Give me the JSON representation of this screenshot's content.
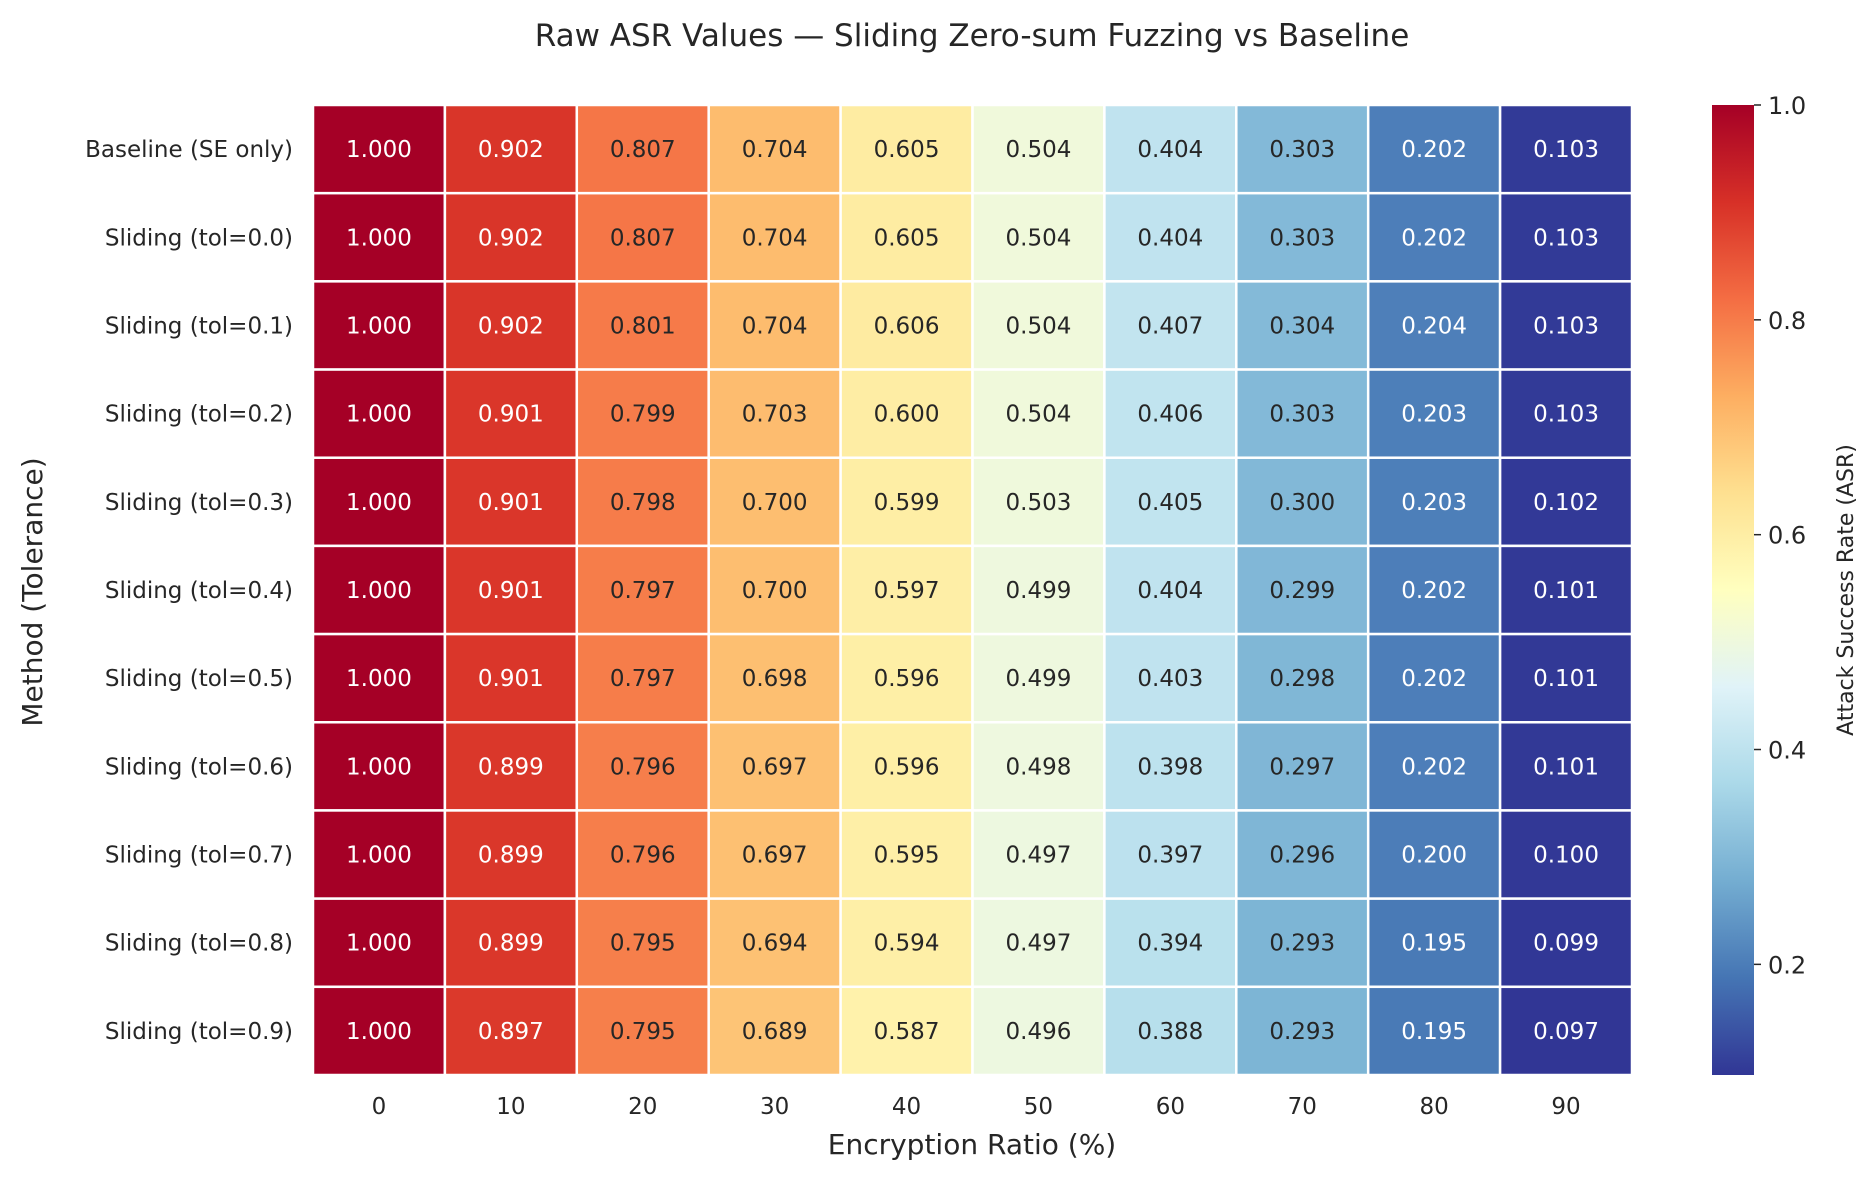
{
  "chart_data": {
    "type": "heatmap",
    "title": "Raw ASR Values — Sliding Zero-sum Fuzzing vs Baseline",
    "xlabel": "Encryption Ratio (%)",
    "ylabel": "Method (Tolerance)",
    "x_categories": [
      "0",
      "10",
      "20",
      "30",
      "40",
      "50",
      "60",
      "70",
      "80",
      "90"
    ],
    "y_categories": [
      "Baseline (SE only)",
      "Sliding (tol=0.0)",
      "Sliding (tol=0.1)",
      "Sliding (tol=0.2)",
      "Sliding (tol=0.3)",
      "Sliding (tol=0.4)",
      "Sliding (tol=0.5)",
      "Sliding (tol=0.6)",
      "Sliding (tol=0.7)",
      "Sliding (tol=0.8)",
      "Sliding (tol=0.9)"
    ],
    "values": [
      [
        1.0,
        0.902,
        0.807,
        0.704,
        0.605,
        0.504,
        0.404,
        0.303,
        0.202,
        0.103
      ],
      [
        1.0,
        0.902,
        0.807,
        0.704,
        0.605,
        0.504,
        0.404,
        0.303,
        0.202,
        0.103
      ],
      [
        1.0,
        0.902,
        0.801,
        0.704,
        0.606,
        0.504,
        0.407,
        0.304,
        0.204,
        0.103
      ],
      [
        1.0,
        0.901,
        0.799,
        0.703,
        0.6,
        0.504,
        0.406,
        0.303,
        0.203,
        0.103
      ],
      [
        1.0,
        0.901,
        0.798,
        0.7,
        0.599,
        0.503,
        0.405,
        0.3,
        0.203,
        0.102
      ],
      [
        1.0,
        0.901,
        0.797,
        0.7,
        0.597,
        0.499,
        0.404,
        0.299,
        0.202,
        0.101
      ],
      [
        1.0,
        0.901,
        0.797,
        0.698,
        0.596,
        0.499,
        0.403,
        0.298,
        0.202,
        0.101
      ],
      [
        1.0,
        0.899,
        0.796,
        0.697,
        0.596,
        0.498,
        0.398,
        0.297,
        0.202,
        0.101
      ],
      [
        1.0,
        0.899,
        0.796,
        0.697,
        0.595,
        0.497,
        0.397,
        0.296,
        0.2,
        0.1
      ],
      [
        1.0,
        0.899,
        0.795,
        0.694,
        0.594,
        0.497,
        0.394,
        0.293,
        0.195,
        0.099
      ],
      [
        1.0,
        0.897,
        0.795,
        0.689,
        0.587,
        0.496,
        0.388,
        0.293,
        0.195,
        0.097
      ]
    ],
    "value_format": "0.000",
    "colorbar": {
      "label": "Attack Success Rate (ASR)",
      "vmin": 0.097,
      "vmax": 1.0,
      "ticks": [
        0.2,
        0.4,
        0.6,
        0.8,
        1.0
      ],
      "tick_labels": [
        "0.2",
        "0.4",
        "0.6",
        "0.8",
        "1.0"
      ],
      "colormap": "RdYlBu_r",
      "stops": [
        "#313695",
        "#4575b4",
        "#74add1",
        "#abd9e9",
        "#e0f3f8",
        "#ffffbf",
        "#fee090",
        "#fdae61",
        "#f46d43",
        "#d73027",
        "#a50026"
      ]
    },
    "grid": true,
    "cell_border_color": "#ffffff",
    "text_color_dark_cells": "#ffffff",
    "text_color_light_cells": "#262626"
  }
}
